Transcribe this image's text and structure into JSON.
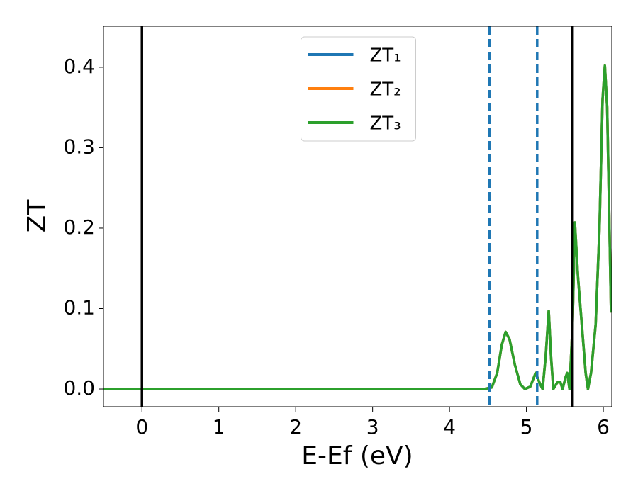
{
  "chart_data": {
    "type": "line",
    "xlabel": "E-Ef (eV)",
    "ylabel": "ZT",
    "x": [
      -0.5,
      4.45,
      4.55,
      4.62,
      4.68,
      4.73,
      4.78,
      4.85,
      4.92,
      4.98,
      5.05,
      5.12,
      5.17,
      5.21,
      5.25,
      5.29,
      5.32,
      5.35,
      5.4,
      5.44,
      5.47,
      5.51,
      5.53,
      5.56,
      5.6,
      5.63,
      5.67,
      5.72,
      5.77,
      5.8,
      5.84,
      5.9,
      5.95,
      5.99,
      6.02,
      6.05,
      6.08,
      6.1
    ],
    "series": [
      {
        "name": "ZT₁",
        "color": "#1f77b4",
        "values": [
          0,
          0,
          0.002,
          0.02,
          0.055,
          0.071,
          0.062,
          0.03,
          0.006,
          0,
          0.003,
          0.02,
          0.008,
          0,
          0.04,
          0.097,
          0.04,
          0,
          0.008,
          0.009,
          0,
          0.015,
          0.02,
          0,
          0.08,
          0.207,
          0.14,
          0.08,
          0.02,
          0,
          0.02,
          0.08,
          0.2,
          0.36,
          0.402,
          0.35,
          0.2,
          0.095
        ]
      },
      {
        "name": "ZT₂",
        "color": "#ff7f0e",
        "values": [
          0,
          0,
          0.002,
          0.02,
          0.055,
          0.071,
          0.062,
          0.03,
          0.006,
          0,
          0.003,
          0.02,
          0.008,
          0,
          0.04,
          0.097,
          0.04,
          0,
          0.008,
          0.009,
          0,
          0.015,
          0.02,
          0,
          0.08,
          0.207,
          0.14,
          0.08,
          0.02,
          0,
          0.02,
          0.08,
          0.2,
          0.36,
          0.402,
          0.35,
          0.2,
          0.095
        ]
      },
      {
        "name": "ZT₃",
        "color": "#2ca02c",
        "values": [
          0,
          0,
          0.002,
          0.02,
          0.055,
          0.071,
          0.062,
          0.03,
          0.006,
          0,
          0.003,
          0.02,
          0.008,
          0,
          0.04,
          0.097,
          0.04,
          0,
          0.008,
          0.009,
          0,
          0.015,
          0.02,
          0,
          0.08,
          0.207,
          0.14,
          0.08,
          0.02,
          0,
          0.02,
          0.08,
          0.2,
          0.36,
          0.402,
          0.35,
          0.2,
          0.095
        ]
      }
    ],
    "vlines": [
      {
        "x": 0,
        "color": "#000000",
        "style": "solid"
      },
      {
        "x": 4.52,
        "color": "#1f77b4",
        "style": "dashed"
      },
      {
        "x": 5.14,
        "color": "#1f77b4",
        "style": "dashed"
      },
      {
        "x": 5.6,
        "color": "#000000",
        "style": "solid"
      }
    ],
    "xlim": [
      -0.5,
      6.11
    ],
    "xticks": [
      0,
      1,
      2,
      3,
      4,
      5,
      6
    ],
    "ylim": [
      -0.022,
      0.451
    ],
    "yticks": [
      {
        "value": 0,
        "label": "0.0"
      },
      0.1,
      0.2,
      0.3,
      0.4
    ],
    "legend": "upper center"
  }
}
